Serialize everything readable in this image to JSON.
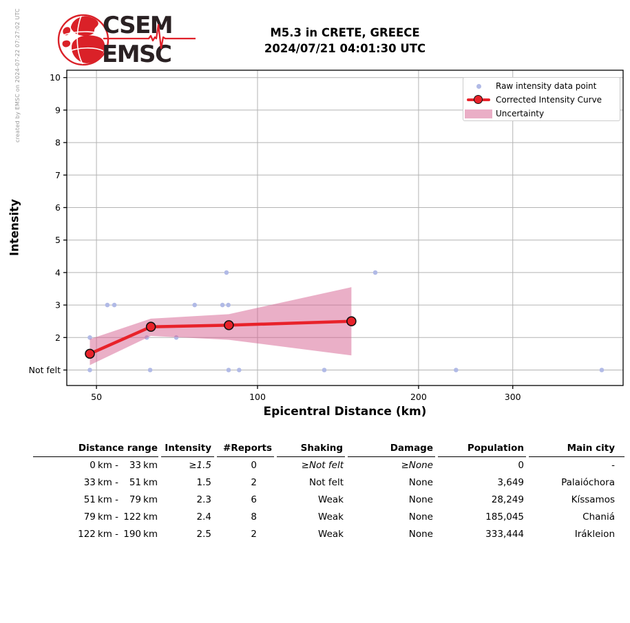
{
  "meta": {
    "created_by": "created by EMSC on 2024-07-22 07:27:02 UTC"
  },
  "logo": {
    "line1": "CSEM",
    "line2": "EMSC"
  },
  "title": {
    "line1": "M5.3 in CRETE, GREECE",
    "line2": "2024/07/21 04:01:30 UTC"
  },
  "colors": {
    "raw_point": "#b1bae6",
    "curve": "#e8222a",
    "marker_edge": "#111111",
    "band": "rgba(214,96,143,0.5)",
    "band_legend": "#eaaec6",
    "grid": "#b3b3b3",
    "axis": "#000000",
    "logo_red": "#da2128",
    "logo_text": "#2a2123"
  },
  "chart_data": {
    "type": "line",
    "xlabel": "Epicentral Distance (km)",
    "ylabel": "Intensity",
    "x_scale": "log",
    "x_ticks": [
      50,
      100,
      200,
      300
    ],
    "x_range_km": [
      44,
      482
    ],
    "y_range": [
      0.53,
      10.24
    ],
    "y_ticks": [
      {
        "value": 1,
        "label": "Not felt"
      },
      {
        "value": 2,
        "label": "2"
      },
      {
        "value": 3,
        "label": "3"
      },
      {
        "value": 4,
        "label": "4"
      },
      {
        "value": 5,
        "label": "5"
      },
      {
        "value": 6,
        "label": "6"
      },
      {
        "value": 7,
        "label": "7"
      },
      {
        "value": 8,
        "label": "8"
      },
      {
        "value": 9,
        "label": "9"
      },
      {
        "value": 10,
        "label": "10"
      }
    ],
    "grid": true,
    "legend_position": "upper-right",
    "legend": [
      {
        "label": "Raw intensity data point",
        "marker": "dot"
      },
      {
        "label": "Corrected Intensity Curve",
        "marker": "line-circle"
      },
      {
        "label": "Uncertainty",
        "marker": "band"
      }
    ],
    "raw_points_km_intensity": [
      [
        48.6,
        1
      ],
      [
        48.6,
        2
      ],
      [
        52.4,
        3
      ],
      [
        54.0,
        3
      ],
      [
        62.1,
        2
      ],
      [
        63.0,
        1
      ],
      [
        70.5,
        2
      ],
      [
        76.3,
        3
      ],
      [
        86.0,
        3
      ],
      [
        87.5,
        4
      ],
      [
        88.2,
        3
      ],
      [
        88.3,
        1
      ],
      [
        92.4,
        1
      ],
      [
        133.3,
        1
      ],
      [
        166.0,
        4
      ],
      [
        235.0,
        1
      ],
      [
        440.0,
        1
      ]
    ],
    "corrected_curve_km_intensity": [
      [
        48.6,
        1.5
      ],
      [
        63.2,
        2.33
      ],
      [
        88.4,
        2.38
      ],
      [
        149.8,
        2.5
      ]
    ],
    "uncertainty_band": {
      "km": [
        48.6,
        63.2,
        88.4,
        149.8
      ],
      "upper": [
        1.95,
        2.58,
        2.72,
        3.55
      ],
      "lower": [
        1.15,
        2.05,
        1.93,
        1.45
      ]
    }
  },
  "table": {
    "headers": [
      "Distance range",
      "Intensity",
      "#Reports",
      "Shaking",
      "Damage",
      "Population",
      "Main city"
    ],
    "range_mid": "km -",
    "range_unit": "km",
    "rows": [
      {
        "range_start": "0",
        "range_end": "33",
        "intensity": "≥1.5",
        "reports": "0",
        "shaking": "≥Not felt",
        "damage": "≥None",
        "population": "0",
        "city": "-"
      },
      {
        "range_start": "33",
        "range_end": "51",
        "intensity": "1.5",
        "reports": "2",
        "shaking": "Not felt",
        "damage": "None",
        "population": "3,649",
        "city": "Palaióchora"
      },
      {
        "range_start": "51",
        "range_end": "79",
        "intensity": "2.3",
        "reports": "6",
        "shaking": "Weak",
        "damage": "None",
        "population": "28,249",
        "city": "Kíssamos"
      },
      {
        "range_start": "79",
        "range_end": "122",
        "intensity": "2.4",
        "reports": "8",
        "shaking": "Weak",
        "damage": "None",
        "population": "185,045",
        "city": "Chaniá"
      },
      {
        "range_start": "122",
        "range_end": "190",
        "intensity": "2.5",
        "reports": "2",
        "shaking": "Weak",
        "damage": "None",
        "population": "333,444",
        "city": "Irákleion"
      }
    ]
  }
}
